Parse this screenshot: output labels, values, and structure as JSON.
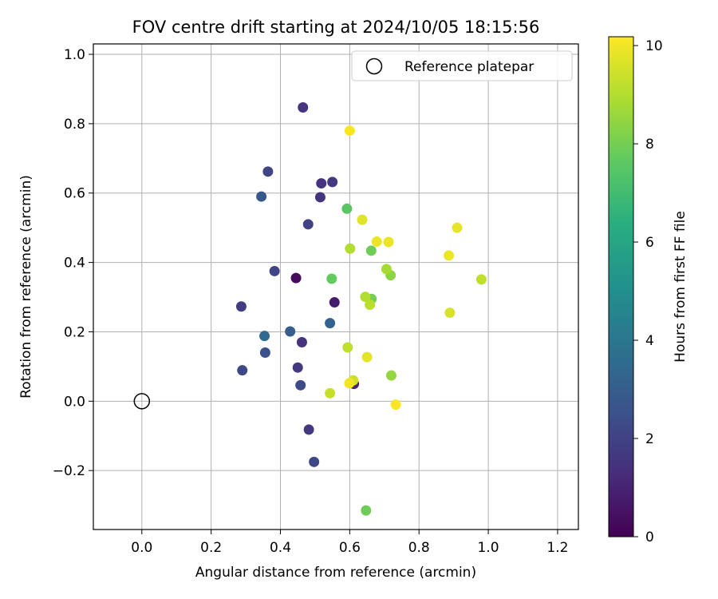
{
  "chart_data": {
    "type": "scatter",
    "title": "FOV centre drift starting at 2024/10/05 18:15:56",
    "xlabel": "Angular distance from reference (arcmin)",
    "ylabel": "Rotation from reference (arcmin)",
    "xlim": [
      -0.14,
      1.26
    ],
    "ylim": [
      -0.37,
      1.03
    ],
    "xticks": [
      0.0,
      0.2,
      0.4,
      0.6,
      0.8,
      1.0,
      1.2
    ],
    "yticks": [
      -0.2,
      0.0,
      0.2,
      0.4,
      0.6,
      0.8,
      1.0
    ],
    "xtick_labels": [
      "0.0",
      "0.2",
      "0.4",
      "0.6",
      "0.8",
      "1.0",
      "1.2"
    ],
    "ytick_labels": [
      "−0.2",
      "0.0",
      "0.2",
      "0.4",
      "0.6",
      "0.8",
      "1.0"
    ],
    "grid": true,
    "legend": {
      "placement": "top-right",
      "entries": [
        {
          "label": "Reference platepar",
          "marker": "open-circle"
        }
      ]
    },
    "reference_point": {
      "x": 0.0,
      "y": 0.0
    },
    "colorbar": {
      "label": "Hours from first FF file",
      "colormap": "viridis",
      "range": [
        0,
        10.18
      ],
      "ticks": [
        0,
        2,
        4,
        6,
        8,
        10
      ],
      "tick_labels": [
        "0",
        "2",
        "4",
        "6",
        "8",
        "10"
      ]
    },
    "points": [
      {
        "x": 0.445,
        "y": 0.355,
        "hours": 0.3
      },
      {
        "x": 0.556,
        "y": 0.285,
        "hours": 0.8
      },
      {
        "x": 0.612,
        "y": 0.05,
        "hours": 1.0
      },
      {
        "x": 0.465,
        "y": 0.847,
        "hours": 1.5
      },
      {
        "x": 0.518,
        "y": 0.628,
        "hours": 1.5
      },
      {
        "x": 0.515,
        "y": 0.588,
        "hours": 1.5
      },
      {
        "x": 0.462,
        "y": 0.17,
        "hours": 1.5
      },
      {
        "x": 0.55,
        "y": 0.632,
        "hours": 1.7
      },
      {
        "x": 0.45,
        "y": 0.097,
        "hours": 1.7
      },
      {
        "x": 0.482,
        "y": -0.082,
        "hours": 1.7
      },
      {
        "x": 0.287,
        "y": 0.273,
        "hours": 1.8
      },
      {
        "x": 0.48,
        "y": 0.51,
        "hours": 2.0
      },
      {
        "x": 0.364,
        "y": 0.662,
        "hours": 2.1
      },
      {
        "x": 0.383,
        "y": 0.375,
        "hours": 2.1
      },
      {
        "x": 0.29,
        "y": 0.089,
        "hours": 2.2
      },
      {
        "x": 0.497,
        "y": -0.175,
        "hours": 2.2
      },
      {
        "x": 0.458,
        "y": 0.046,
        "hours": 2.3
      },
      {
        "x": 0.356,
        "y": 0.14,
        "hours": 2.5
      },
      {
        "x": 0.345,
        "y": 0.59,
        "hours": 2.8
      },
      {
        "x": 0.428,
        "y": 0.201,
        "hours": 3.0
      },
      {
        "x": 0.543,
        "y": 0.225,
        "hours": 3.2
      },
      {
        "x": 0.354,
        "y": 0.188,
        "hours": 3.5
      },
      {
        "x": 0.592,
        "y": 0.555,
        "hours": 7.5
      },
      {
        "x": 0.548,
        "y": 0.353,
        "hours": 7.7
      },
      {
        "x": 0.662,
        "y": 0.434,
        "hours": 7.9
      },
      {
        "x": 0.663,
        "y": 0.295,
        "hours": 8.0
      },
      {
        "x": 0.647,
        "y": -0.315,
        "hours": 7.9
      },
      {
        "x": 0.718,
        "y": 0.363,
        "hours": 8.4
      },
      {
        "x": 0.72,
        "y": 0.074,
        "hours": 8.5
      },
      {
        "x": 0.706,
        "y": 0.381,
        "hours": 8.8
      },
      {
        "x": 0.601,
        "y": 0.44,
        "hours": 9.0
      },
      {
        "x": 0.645,
        "y": 0.301,
        "hours": 9.0
      },
      {
        "x": 0.658,
        "y": 0.278,
        "hours": 9.1
      },
      {
        "x": 0.594,
        "y": 0.155,
        "hours": 9.2
      },
      {
        "x": 0.543,
        "y": 0.023,
        "hours": 9.3
      },
      {
        "x": 0.61,
        "y": 0.06,
        "hours": 9.4
      },
      {
        "x": 0.98,
        "y": 0.351,
        "hours": 9.2
      },
      {
        "x": 0.889,
        "y": 0.255,
        "hours": 9.6
      },
      {
        "x": 0.91,
        "y": 0.5,
        "hours": 9.8
      },
      {
        "x": 0.636,
        "y": 0.523,
        "hours": 9.7
      },
      {
        "x": 0.65,
        "y": 0.127,
        "hours": 9.8
      },
      {
        "x": 0.678,
        "y": 0.46,
        "hours": 9.9
      },
      {
        "x": 0.712,
        "y": 0.459,
        "hours": 9.9
      },
      {
        "x": 0.886,
        "y": 0.42,
        "hours": 9.9
      },
      {
        "x": 0.599,
        "y": 0.052,
        "hours": 10.0
      },
      {
        "x": 0.733,
        "y": -0.01,
        "hours": 10.1
      },
      {
        "x": 0.6,
        "y": 0.78,
        "hours": 10.1
      }
    ]
  }
}
